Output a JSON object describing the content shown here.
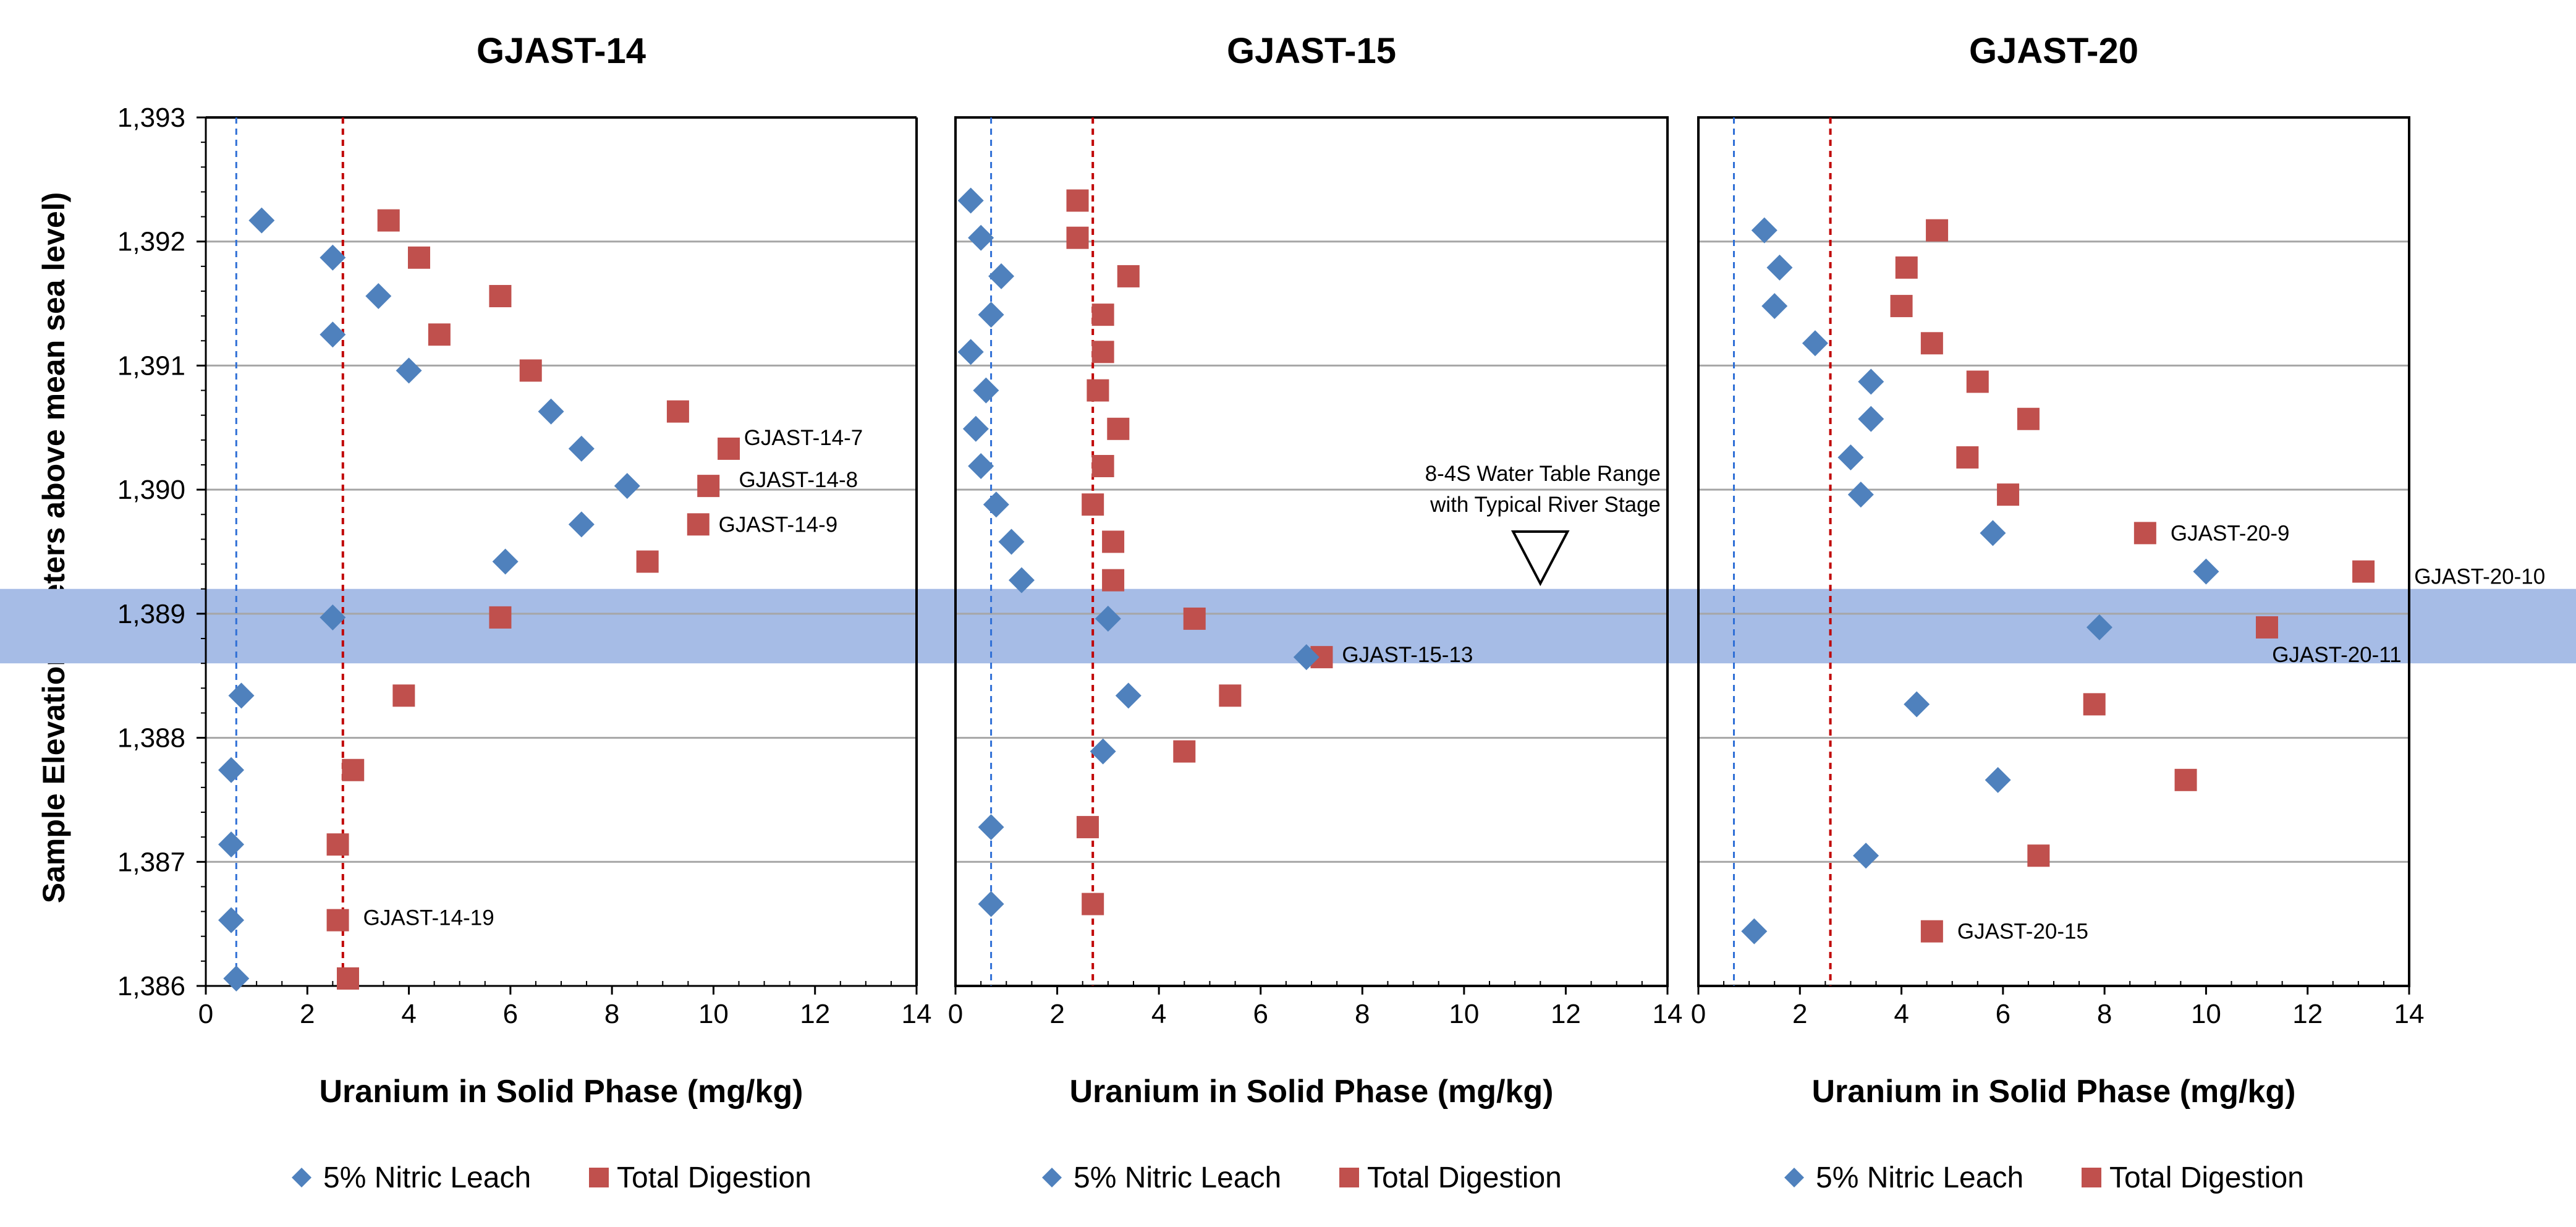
{
  "chart_data": {
    "type": "scatter",
    "ylabel": "Sample Elevation (meters above mean sea level)",
    "ylim": [
      1386,
      1393
    ],
    "y_ticks": [
      "1,386",
      "1,387",
      "1,388",
      "1,389",
      "1,390",
      "1,391",
      "1,392",
      "1,393"
    ],
    "water_table_band": [
      1388.6,
      1389.2
    ],
    "colors": {
      "nitric": "#4f81bd",
      "total": "#c0504d",
      "band": "#a6bce6",
      "grid": "#a6a6a6"
    },
    "legend": {
      "nitric": "5% Nitric Leach",
      "total": "Total Digestion"
    },
    "water_table_label": [
      "8-4S Water Table Range",
      "with Typical River Stage"
    ],
    "water_table_symbol_x": 11.5,
    "panels": [
      {
        "title": "GJAST-14",
        "xlabel": "Uranium in Solid Phase (mg/kg)",
        "xlim": [
          0,
          14
        ],
        "x_ticks": [
          "0",
          "2",
          "4",
          "6",
          "8",
          "10",
          "12",
          "14"
        ],
        "ref_lines": {
          "nitric": 0.6,
          "total": 2.7
        },
        "series": [
          {
            "name": "5% Nitric Leach",
            "points": [
              [
                1.1,
                1392.17
              ],
              [
                2.5,
                1391.87
              ],
              [
                3.4,
                1391.56
              ],
              [
                2.5,
                1391.25
              ],
              [
                4.0,
                1390.96
              ],
              [
                6.8,
                1390.63
              ],
              [
                7.4,
                1390.33
              ],
              [
                8.3,
                1390.03
              ],
              [
                7.4,
                1389.72
              ],
              [
                5.9,
                1389.42
              ],
              [
                2.5,
                1388.97
              ],
              [
                0.7,
                1388.34
              ],
              [
                0.5,
                1387.74
              ],
              [
                0.5,
                1387.14
              ],
              [
                0.5,
                1386.53
              ],
              [
                0.6,
                1386.06
              ]
            ]
          },
          {
            "name": "Total Digestion",
            "points": [
              [
                3.6,
                1392.17
              ],
              [
                4.2,
                1391.87
              ],
              [
                5.8,
                1391.56
              ],
              [
                4.6,
                1391.25
              ],
              [
                6.4,
                1390.96
              ],
              [
                9.3,
                1390.63
              ],
              [
                10.3,
                1390.33
              ],
              [
                9.9,
                1390.03
              ],
              [
                9.7,
                1389.72
              ],
              [
                8.7,
                1389.42
              ],
              [
                5.8,
                1388.97
              ],
              [
                3.9,
                1388.34
              ],
              [
                2.9,
                1387.74
              ],
              [
                2.6,
                1387.14
              ],
              [
                2.6,
                1386.53
              ],
              [
                2.8,
                1386.06
              ]
            ]
          }
        ],
        "annotations": [
          {
            "text": "GJAST-14-7",
            "x": 10.6,
            "y": 1390.42
          },
          {
            "text": "GJAST-14-8",
            "x": 10.5,
            "y": 1390.08
          },
          {
            "text": "GJAST-14-9",
            "x": 10.1,
            "y": 1389.72
          },
          {
            "text": "GJAST-14-19",
            "x": 3.1,
            "y": 1386.55
          }
        ]
      },
      {
        "title": "GJAST-15",
        "xlabel": "Uranium in Solid Phase (mg/kg)",
        "xlim": [
          0,
          14
        ],
        "x_ticks": [
          "0",
          "2",
          "4",
          "6",
          "8",
          "10",
          "12",
          "14"
        ],
        "ref_lines": {
          "nitric": 0.7,
          "total": 2.7
        },
        "series": [
          {
            "name": "5% Nitric Leach",
            "points": [
              [
                0.3,
                1392.33
              ],
              [
                0.5,
                1392.03
              ],
              [
                0.9,
                1391.72
              ],
              [
                0.7,
                1391.41
              ],
              [
                0.3,
                1391.11
              ],
              [
                0.6,
                1390.8
              ],
              [
                0.4,
                1390.49
              ],
              [
                0.5,
                1390.19
              ],
              [
                0.8,
                1389.88
              ],
              [
                1.1,
                1389.58
              ],
              [
                1.3,
                1389.27
              ],
              [
                3.0,
                1388.96
              ],
              [
                6.9,
                1388.65
              ],
              [
                3.4,
                1388.34
              ],
              [
                2.9,
                1387.89
              ],
              [
                0.7,
                1387.28
              ],
              [
                0.7,
                1386.66
              ]
            ]
          },
          {
            "name": "Total Digestion",
            "points": [
              [
                2.4,
                1392.33
              ],
              [
                2.4,
                1392.03
              ],
              [
                3.4,
                1391.72
              ],
              [
                2.9,
                1391.41
              ],
              [
                2.9,
                1391.11
              ],
              [
                2.8,
                1390.8
              ],
              [
                3.2,
                1390.49
              ],
              [
                2.9,
                1390.19
              ],
              [
                2.7,
                1389.88
              ],
              [
                3.1,
                1389.58
              ],
              [
                3.1,
                1389.27
              ],
              [
                4.7,
                1388.96
              ],
              [
                7.2,
                1388.65
              ],
              [
                5.4,
                1388.34
              ],
              [
                4.5,
                1387.89
              ],
              [
                2.6,
                1387.28
              ],
              [
                2.7,
                1386.66
              ]
            ]
          }
        ],
        "annotations": [
          {
            "text": "GJAST-15-13",
            "x": 7.6,
            "y": 1388.67
          }
        ]
      },
      {
        "title": "GJAST-20",
        "xlabel": "Uranium in Solid Phase (mg/kg)",
        "xlim": [
          0,
          14
        ],
        "x_ticks": [
          "0",
          "2",
          "4",
          "6",
          "8",
          "10",
          "12",
          "14"
        ],
        "ref_lines": {
          "nitric": 0.7,
          "total": 2.6
        },
        "series": [
          {
            "name": "5% Nitric Leach",
            "points": [
              [
                1.3,
                1392.09
              ],
              [
                1.6,
                1391.79
              ],
              [
                1.5,
                1391.48
              ],
              [
                2.3,
                1391.18
              ],
              [
                3.4,
                1390.87
              ],
              [
                3.4,
                1390.57
              ],
              [
                3.0,
                1390.26
              ],
              [
                3.2,
                1389.96
              ],
              [
                5.8,
                1389.65
              ],
              [
                10.0,
                1389.34
              ],
              [
                7.9,
                1388.89
              ],
              [
                4.3,
                1388.27
              ],
              [
                5.9,
                1387.66
              ],
              [
                3.3,
                1387.05
              ],
              [
                1.1,
                1386.44
              ]
            ]
          },
          {
            "name": "Total Digestion",
            "points": [
              [
                4.7,
                1392.09
              ],
              [
                4.1,
                1391.79
              ],
              [
                4.0,
                1391.48
              ],
              [
                4.6,
                1391.18
              ],
              [
                5.5,
                1390.87
              ],
              [
                6.5,
                1390.57
              ],
              [
                5.3,
                1390.26
              ],
              [
                6.1,
                1389.96
              ],
              [
                8.8,
                1389.65
              ],
              [
                13.1,
                1389.34
              ],
              [
                11.2,
                1388.89
              ],
              [
                7.8,
                1388.27
              ],
              [
                9.6,
                1387.66
              ],
              [
                6.7,
                1387.05
              ],
              [
                4.6,
                1386.44
              ]
            ]
          }
        ],
        "annotations": [
          {
            "text": "GJAST-20-9",
            "x": 9.3,
            "y": 1389.65
          },
          {
            "text": "GJAST-20-10",
            "x": 14.1,
            "y": 1389.3
          },
          {
            "text": "GJAST-20-11",
            "x": 11.3,
            "y": 1388.67
          },
          {
            "text": "GJAST-20-15",
            "x": 5.1,
            "y": 1386.44
          }
        ]
      }
    ]
  }
}
